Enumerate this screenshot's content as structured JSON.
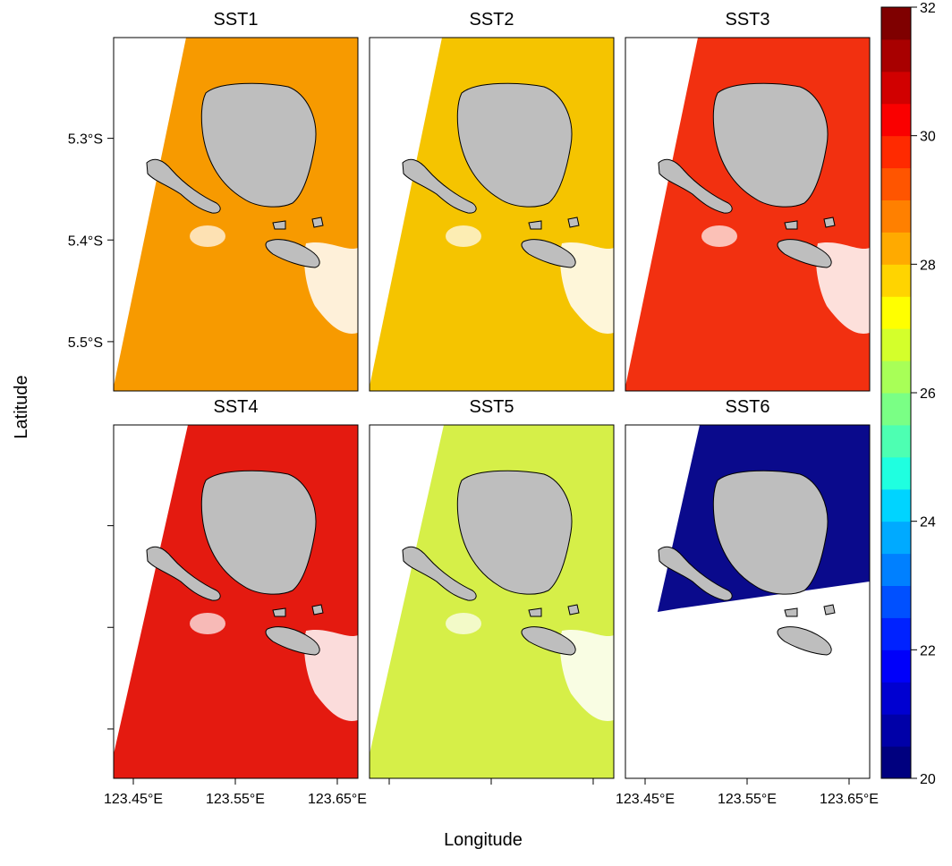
{
  "x_label": "Longitude",
  "y_label": "Latitude",
  "xlim": [
    123.4307,
    123.6702
  ],
  "ylim": [
    -5.5485,
    -5.2009
  ],
  "xticks": [
    {
      "value": 123.45,
      "label": "123.45°E"
    },
    {
      "value": 123.55,
      "label": "123.55°E"
    },
    {
      "value": 123.65,
      "label": "123.65°E"
    }
  ],
  "yticks": [
    {
      "value": -5.3,
      "label": "5.3°S"
    },
    {
      "value": -5.4,
      "label": "5.4°S"
    },
    {
      "value": -5.5,
      "label": "5.5°S"
    }
  ],
  "panels": [
    {
      "title": "SST1",
      "color": "#f79a00"
    },
    {
      "title": "SST2",
      "color": "#f5c400"
    },
    {
      "title": "SST3",
      "color": "#f23010"
    },
    {
      "title": "SST4",
      "color": "#e41a10"
    },
    {
      "title": "SST5",
      "color": "#d6ef48"
    },
    {
      "title": "SST6",
      "color": "#0a0a8c"
    }
  ],
  "colorbar": {
    "lim": [
      20,
      32
    ],
    "ticks": [
      20,
      22,
      24,
      26,
      28,
      30,
      32
    ],
    "colors": [
      "#00007f",
      "#0000a8",
      "#0000d1",
      "#0000fa",
      "#0022ff",
      "#0050ff",
      "#0080ff",
      "#00aaff",
      "#00d4ff",
      "#1fffe0",
      "#4dffb2",
      "#7aff85",
      "#a8ff57",
      "#d4ff2b",
      "#ffff00",
      "#ffd400",
      "#ffaa00",
      "#ff8000",
      "#ff5500",
      "#ff2a00",
      "#fa0000",
      "#d10000",
      "#a80000",
      "#7f0000"
    ]
  }
}
